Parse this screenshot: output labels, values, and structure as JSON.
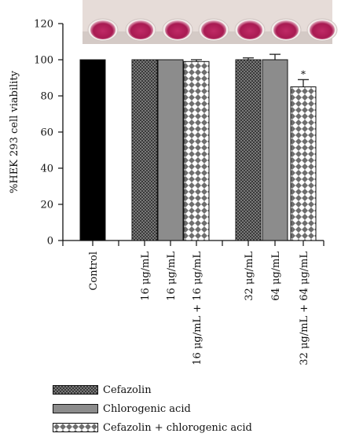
{
  "chart_data": {
    "type": "bar",
    "categories": [
      "Control",
      "16 μg/mL",
      "16 μg/mL",
      "16 μg/mL + 16 μg/mL",
      "32 μg/mL",
      "64 μg/mL",
      "32 μg/mL + 64 μg/mL"
    ],
    "values": [
      100,
      100,
      100,
      99,
      100,
      100,
      85
    ],
    "errors": [
      0,
      0,
      0,
      1,
      1,
      3,
      4
    ],
    "bar_styles": [
      "control",
      "cefazolin",
      "chlorogenic",
      "combo",
      "cefazolin",
      "chlorogenic",
      "combo"
    ],
    "significance": [
      "",
      "",
      "",
      "",
      "",
      "",
      "*"
    ],
    "ylabel": "%HEK 293 cell viability",
    "xlabel": "",
    "ylim": [
      0,
      120
    ],
    "yticks": [
      0,
      20,
      40,
      60,
      80,
      100,
      120
    ],
    "grid": false,
    "legend_position": "bottom-left",
    "legend": [
      {
        "label": "Cefazolin",
        "style": "cefazolin"
      },
      {
        "label": "Chlorogenic acid",
        "style": "chlorogenic"
      },
      {
        "label": "Cefazolin + chlorogenic acid",
        "style": "combo"
      }
    ],
    "inset": "photo-of-seven-magenta-wells",
    "colors": {
      "control": "#000000",
      "cefazolin": "#3a3a3a",
      "chlorogenic": "#8c8c8c",
      "combo": "#6e6e6e",
      "well": "#b01e5a"
    }
  }
}
